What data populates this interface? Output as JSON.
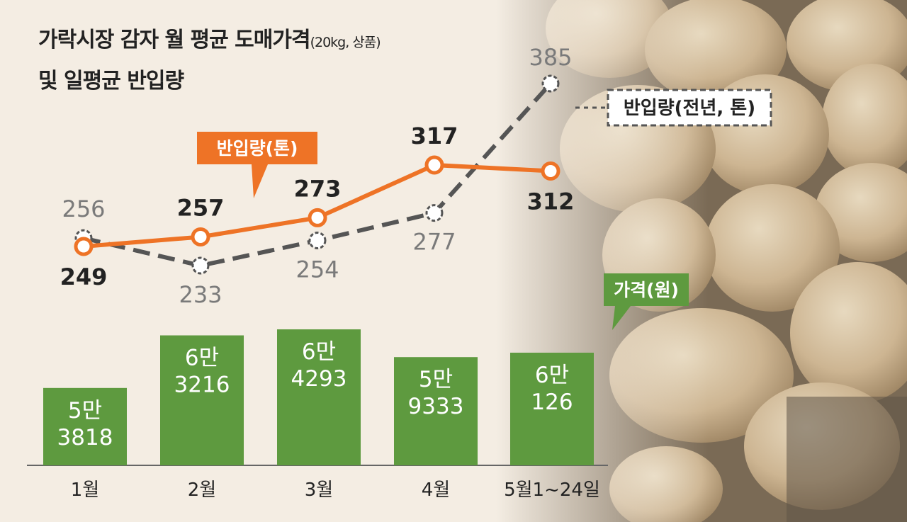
{
  "title": {
    "line1": "가락시장 감자 월 평균 도매가격",
    "line1_note": "(20kg, 상품)",
    "line2": "및 일평균 반입량"
  },
  "colors": {
    "orange": "#ee7326",
    "gray": "#555555",
    "green": "#5e9a3f",
    "background": "#f4ede3"
  },
  "chart_data": {
    "type": "bar+line",
    "categories": [
      "1월",
      "2월",
      "3월",
      "4월",
      "5월1~24일"
    ],
    "price": {
      "name": "가격(원)",
      "values": [
        53818,
        63216,
        64293,
        59333,
        60126
      ],
      "labels": [
        [
          "5만",
          "3818"
        ],
        [
          "6만",
          "3216"
        ],
        [
          "6만",
          "4293"
        ],
        [
          "5만",
          "9333"
        ],
        [
          "6만",
          "126"
        ]
      ]
    },
    "series": [
      {
        "name": "반입량(톤)",
        "values": [
          249,
          257,
          273,
          317,
          312
        ]
      },
      {
        "name": "반입량(전년, 톤)",
        "values": [
          256,
          233,
          254,
          277,
          385
        ]
      }
    ]
  }
}
